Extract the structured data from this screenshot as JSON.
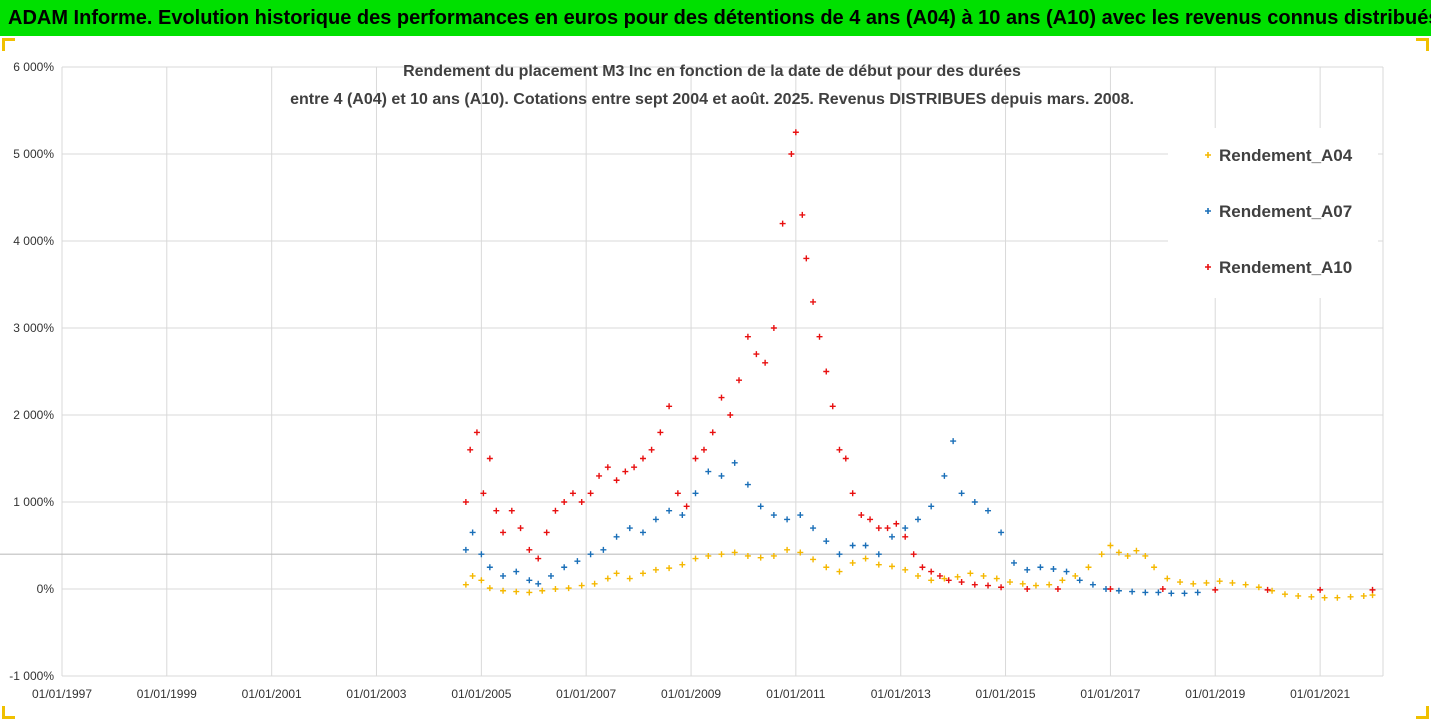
{
  "banner": {
    "text": "ADAM Informe. Evolution historique des performances en euros pour des détentions de 4 ans (A04) à 10 ans (A10) avec les revenus connus distribués",
    "background": "#00e000"
  },
  "chart_data": {
    "type": "scatter",
    "title_line1": "Rendement du placement M3 Inc en fonction de la date de début pour des durées",
    "title_line2": "entre 4 (A04) et 10 ans (A10). Cotations entre sept 2004 et août. 2025. Revenus DISTRIBUES depuis mars. 2008.",
    "xlabel": "",
    "ylabel": "",
    "xlim": [
      "1997-01-01",
      "2022-03-15"
    ],
    "ylim": [
      -1000,
      6000
    ],
    "y_unit": "%",
    "y_ticks": [
      "-1 000%",
      "0%",
      "1 000%",
      "2 000%",
      "3 000%",
      "4 000%",
      "5 000%",
      "6 000%"
    ],
    "x_ticks": [
      "01/01/1997",
      "01/01/1999",
      "01/01/2001",
      "01/01/2003",
      "01/01/2005",
      "01/01/2007",
      "01/01/2009",
      "01/01/2011",
      "01/01/2013",
      "01/01/2015",
      "01/01/2017",
      "01/01/2019",
      "01/01/2021"
    ],
    "reference_line_y": 400,
    "grid": true,
    "legend_position": "top-right",
    "marker": "+",
    "series": [
      {
        "name": "Rendement_A04",
        "color": "#f5b800",
        "points": [
          [
            "2004-09-15",
            50
          ],
          [
            "2004-11-01",
            150
          ],
          [
            "2005-01-01",
            100
          ],
          [
            "2005-03-01",
            10
          ],
          [
            "2005-06-01",
            -20
          ],
          [
            "2005-09-01",
            -30
          ],
          [
            "2005-12-01",
            -40
          ],
          [
            "2006-03-01",
            -20
          ],
          [
            "2006-06-01",
            0
          ],
          [
            "2006-09-01",
            10
          ],
          [
            "2006-12-01",
            40
          ],
          [
            "2007-03-01",
            60
          ],
          [
            "2007-06-01",
            120
          ],
          [
            "2007-08-01",
            180
          ],
          [
            "2007-11-01",
            120
          ],
          [
            "2008-02-01",
            180
          ],
          [
            "2008-05-01",
            220
          ],
          [
            "2008-08-01",
            240
          ],
          [
            "2008-11-01",
            280
          ],
          [
            "2009-02-01",
            350
          ],
          [
            "2009-05-01",
            380
          ],
          [
            "2009-08-01",
            400
          ],
          [
            "2009-11-01",
            420
          ],
          [
            "2010-02-01",
            380
          ],
          [
            "2010-05-01",
            360
          ],
          [
            "2010-08-01",
            380
          ],
          [
            "2010-11-01",
            450
          ],
          [
            "2011-02-01",
            420
          ],
          [
            "2011-05-01",
            340
          ],
          [
            "2011-08-01",
            250
          ],
          [
            "2011-11-01",
            200
          ],
          [
            "2012-02-01",
            300
          ],
          [
            "2012-05-01",
            350
          ],
          [
            "2012-08-01",
            280
          ],
          [
            "2012-11-01",
            260
          ],
          [
            "2013-02-01",
            220
          ],
          [
            "2013-05-01",
            150
          ],
          [
            "2013-08-01",
            100
          ],
          [
            "2013-11-01",
            120
          ],
          [
            "2014-02-01",
            140
          ],
          [
            "2014-05-01",
            180
          ],
          [
            "2014-08-01",
            150
          ],
          [
            "2014-11-01",
            120
          ],
          [
            "2015-02-01",
            80
          ],
          [
            "2015-05-01",
            60
          ],
          [
            "2015-08-01",
            40
          ],
          [
            "2015-11-01",
            50
          ],
          [
            "2016-02-01",
            100
          ],
          [
            "2016-05-01",
            150
          ],
          [
            "2016-08-01",
            250
          ],
          [
            "2016-11-01",
            400
          ],
          [
            "2017-01-01",
            500
          ],
          [
            "2017-03-01",
            420
          ],
          [
            "2017-05-01",
            380
          ],
          [
            "2017-07-01",
            440
          ],
          [
            "2017-09-01",
            380
          ],
          [
            "2017-11-01",
            250
          ],
          [
            "2018-02-01",
            120
          ],
          [
            "2018-05-01",
            80
          ],
          [
            "2018-08-01",
            60
          ],
          [
            "2018-11-01",
            70
          ],
          [
            "2019-02-01",
            90
          ],
          [
            "2019-05-01",
            70
          ],
          [
            "2019-08-01",
            50
          ],
          [
            "2019-11-01",
            20
          ],
          [
            "2020-02-01",
            -20
          ],
          [
            "2020-05-01",
            -60
          ],
          [
            "2020-08-01",
            -80
          ],
          [
            "2020-11-01",
            -90
          ],
          [
            "2021-02-01",
            -100
          ],
          [
            "2021-05-01",
            -100
          ],
          [
            "2021-08-01",
            -90
          ],
          [
            "2021-11-01",
            -80
          ],
          [
            "2022-01-01",
            -70
          ]
        ]
      },
      {
        "name": "Rendement_A07",
        "color": "#1a6fb8",
        "points": [
          [
            "2004-09-15",
            450
          ],
          [
            "2004-11-01",
            650
          ],
          [
            "2005-01-01",
            400
          ],
          [
            "2005-03-01",
            250
          ],
          [
            "2005-06-01",
            150
          ],
          [
            "2005-09-01",
            200
          ],
          [
            "2005-12-01",
            100
          ],
          [
            "2006-02-01",
            60
          ],
          [
            "2006-05-01",
            150
          ],
          [
            "2006-08-01",
            250
          ],
          [
            "2006-11-01",
            320
          ],
          [
            "2007-02-01",
            400
          ],
          [
            "2007-05-01",
            450
          ],
          [
            "2007-08-01",
            600
          ],
          [
            "2007-11-01",
            700
          ],
          [
            "2008-02-01",
            650
          ],
          [
            "2008-05-01",
            800
          ],
          [
            "2008-08-01",
            900
          ],
          [
            "2008-11-01",
            850
          ],
          [
            "2009-02-01",
            1100
          ],
          [
            "2009-05-01",
            1350
          ],
          [
            "2009-08-01",
            1300
          ],
          [
            "2009-11-01",
            1450
          ],
          [
            "2010-02-01",
            1200
          ],
          [
            "2010-05-01",
            950
          ],
          [
            "2010-08-01",
            850
          ],
          [
            "2010-11-01",
            800
          ],
          [
            "2011-02-01",
            850
          ],
          [
            "2011-05-01",
            700
          ],
          [
            "2011-08-01",
            550
          ],
          [
            "2011-11-01",
            400
          ],
          [
            "2012-02-01",
            500
          ],
          [
            "2012-05-01",
            500
          ],
          [
            "2012-08-01",
            400
          ],
          [
            "2012-11-01",
            600
          ],
          [
            "2013-02-01",
            700
          ],
          [
            "2013-05-01",
            800
          ],
          [
            "2013-08-01",
            950
          ],
          [
            "2013-11-01",
            1300
          ],
          [
            "2014-01-01",
            1700
          ],
          [
            "2014-03-01",
            1100
          ],
          [
            "2014-06-01",
            1000
          ],
          [
            "2014-09-01",
            900
          ],
          [
            "2014-12-01",
            650
          ],
          [
            "2015-03-01",
            300
          ],
          [
            "2015-06-01",
            220
          ],
          [
            "2015-09-01",
            250
          ],
          [
            "2015-12-01",
            230
          ],
          [
            "2016-03-01",
            200
          ],
          [
            "2016-06-01",
            100
          ],
          [
            "2016-09-01",
            50
          ],
          [
            "2016-12-01",
            0
          ],
          [
            "2017-03-01",
            -20
          ],
          [
            "2017-06-01",
            -30
          ],
          [
            "2017-09-01",
            -40
          ],
          [
            "2017-12-01",
            -40
          ],
          [
            "2018-03-01",
            -50
          ],
          [
            "2018-06-01",
            -50
          ],
          [
            "2018-09-01",
            -40
          ]
        ]
      },
      {
        "name": "Rendement_A10",
        "color": "#e81010",
        "points": [
          [
            "2004-09-15",
            1000
          ],
          [
            "2004-10-15",
            1600
          ],
          [
            "2004-12-01",
            1800
          ],
          [
            "2005-01-15",
            1100
          ],
          [
            "2005-03-01",
            1500
          ],
          [
            "2005-04-15",
            900
          ],
          [
            "2005-06-01",
            650
          ],
          [
            "2005-08-01",
            900
          ],
          [
            "2005-10-01",
            700
          ],
          [
            "2005-12-01",
            450
          ],
          [
            "2006-02-01",
            350
          ],
          [
            "2006-04-01",
            650
          ],
          [
            "2006-06-01",
            900
          ],
          [
            "2006-08-01",
            1000
          ],
          [
            "2006-10-01",
            1100
          ],
          [
            "2006-12-01",
            1000
          ],
          [
            "2007-02-01",
            1100
          ],
          [
            "2007-04-01",
            1300
          ],
          [
            "2007-06-01",
            1400
          ],
          [
            "2007-08-01",
            1250
          ],
          [
            "2007-10-01",
            1350
          ],
          [
            "2007-12-01",
            1400
          ],
          [
            "2008-02-01",
            1500
          ],
          [
            "2008-04-01",
            1600
          ],
          [
            "2008-06-01",
            1800
          ],
          [
            "2008-08-01",
            2100
          ],
          [
            "2008-10-01",
            1100
          ],
          [
            "2008-12-01",
            950
          ],
          [
            "2009-02-01",
            1500
          ],
          [
            "2009-04-01",
            1600
          ],
          [
            "2009-06-01",
            1800
          ],
          [
            "2009-08-01",
            2200
          ],
          [
            "2009-10-01",
            2000
          ],
          [
            "2009-12-01",
            2400
          ],
          [
            "2010-02-01",
            2900
          ],
          [
            "2010-04-01",
            2700
          ],
          [
            "2010-06-01",
            2600
          ],
          [
            "2010-08-01",
            3000
          ],
          [
            "2010-10-01",
            4200
          ],
          [
            "2010-12-01",
            5000
          ],
          [
            "2011-01-01",
            5250
          ],
          [
            "2011-02-15",
            4300
          ],
          [
            "2011-03-15",
            3800
          ],
          [
            "2011-05-01",
            3300
          ],
          [
            "2011-06-15",
            2900
          ],
          [
            "2011-08-01",
            2500
          ],
          [
            "2011-09-15",
            2100
          ],
          [
            "2011-11-01",
            1600
          ],
          [
            "2011-12-15",
            1500
          ],
          [
            "2012-02-01",
            1100
          ],
          [
            "2012-04-01",
            850
          ],
          [
            "2012-06-01",
            800
          ],
          [
            "2012-08-01",
            700
          ],
          [
            "2012-10-01",
            700
          ],
          [
            "2012-12-01",
            750
          ],
          [
            "2013-02-01",
            600
          ],
          [
            "2013-04-01",
            400
          ],
          [
            "2013-06-01",
            250
          ],
          [
            "2013-08-01",
            200
          ],
          [
            "2013-10-01",
            150
          ],
          [
            "2013-12-01",
            100
          ],
          [
            "2014-03-01",
            80
          ],
          [
            "2014-06-01",
            50
          ],
          [
            "2014-09-01",
            40
          ],
          [
            "2014-12-01",
            20
          ],
          [
            "2015-06-01",
            0
          ],
          [
            "2016-01-01",
            0
          ],
          [
            "2017-01-01",
            0
          ],
          [
            "2018-01-01",
            0
          ],
          [
            "2019-01-01",
            -10
          ],
          [
            "2020-01-01",
            -10
          ],
          [
            "2021-01-01",
            -10
          ],
          [
            "2022-01-01",
            -10
          ]
        ]
      }
    ]
  }
}
